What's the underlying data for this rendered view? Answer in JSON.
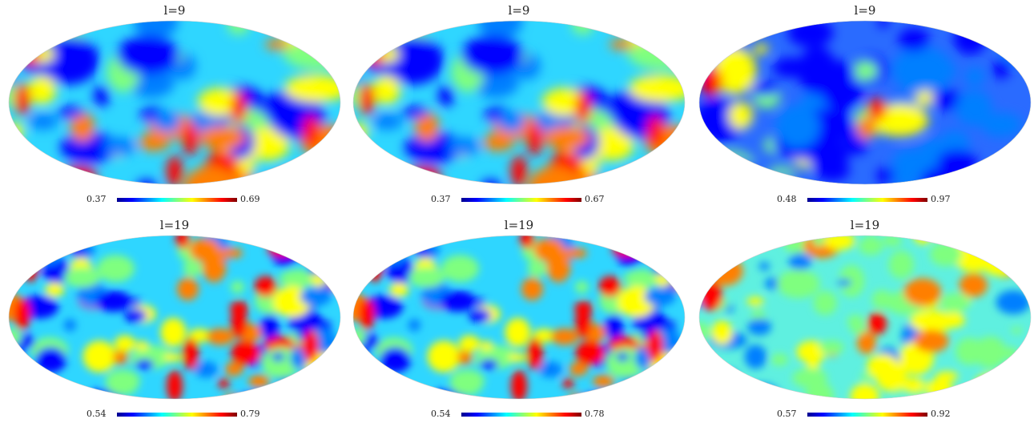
{
  "panels": [
    {
      "title": "l=9",
      "min": "0.37",
      "max": "0.69",
      "seed": 3,
      "style": "a"
    },
    {
      "title": "l=9",
      "min": "0.37",
      "max": "0.67",
      "seed": 3,
      "style": "a"
    },
    {
      "title": "l=9",
      "min": "0.48",
      "max": "0.97",
      "seed": 11,
      "style": "c"
    },
    {
      "title": "l=19",
      "min": "0.54",
      "max": "0.79",
      "seed": 5,
      "style": "b"
    },
    {
      "title": "l=19",
      "min": "0.54",
      "max": "0.78",
      "seed": 5,
      "style": "b"
    },
    {
      "title": "l=19",
      "min": "0.57",
      "max": "0.92",
      "seed": 17,
      "style": "d"
    }
  ],
  "colormap": [
    "#00008f",
    "#0000ff",
    "#007fff",
    "#00ffff",
    "#7fff7f",
    "#ffff00",
    "#ff7f00",
    "#ff0000",
    "#7f0000"
  ]
}
